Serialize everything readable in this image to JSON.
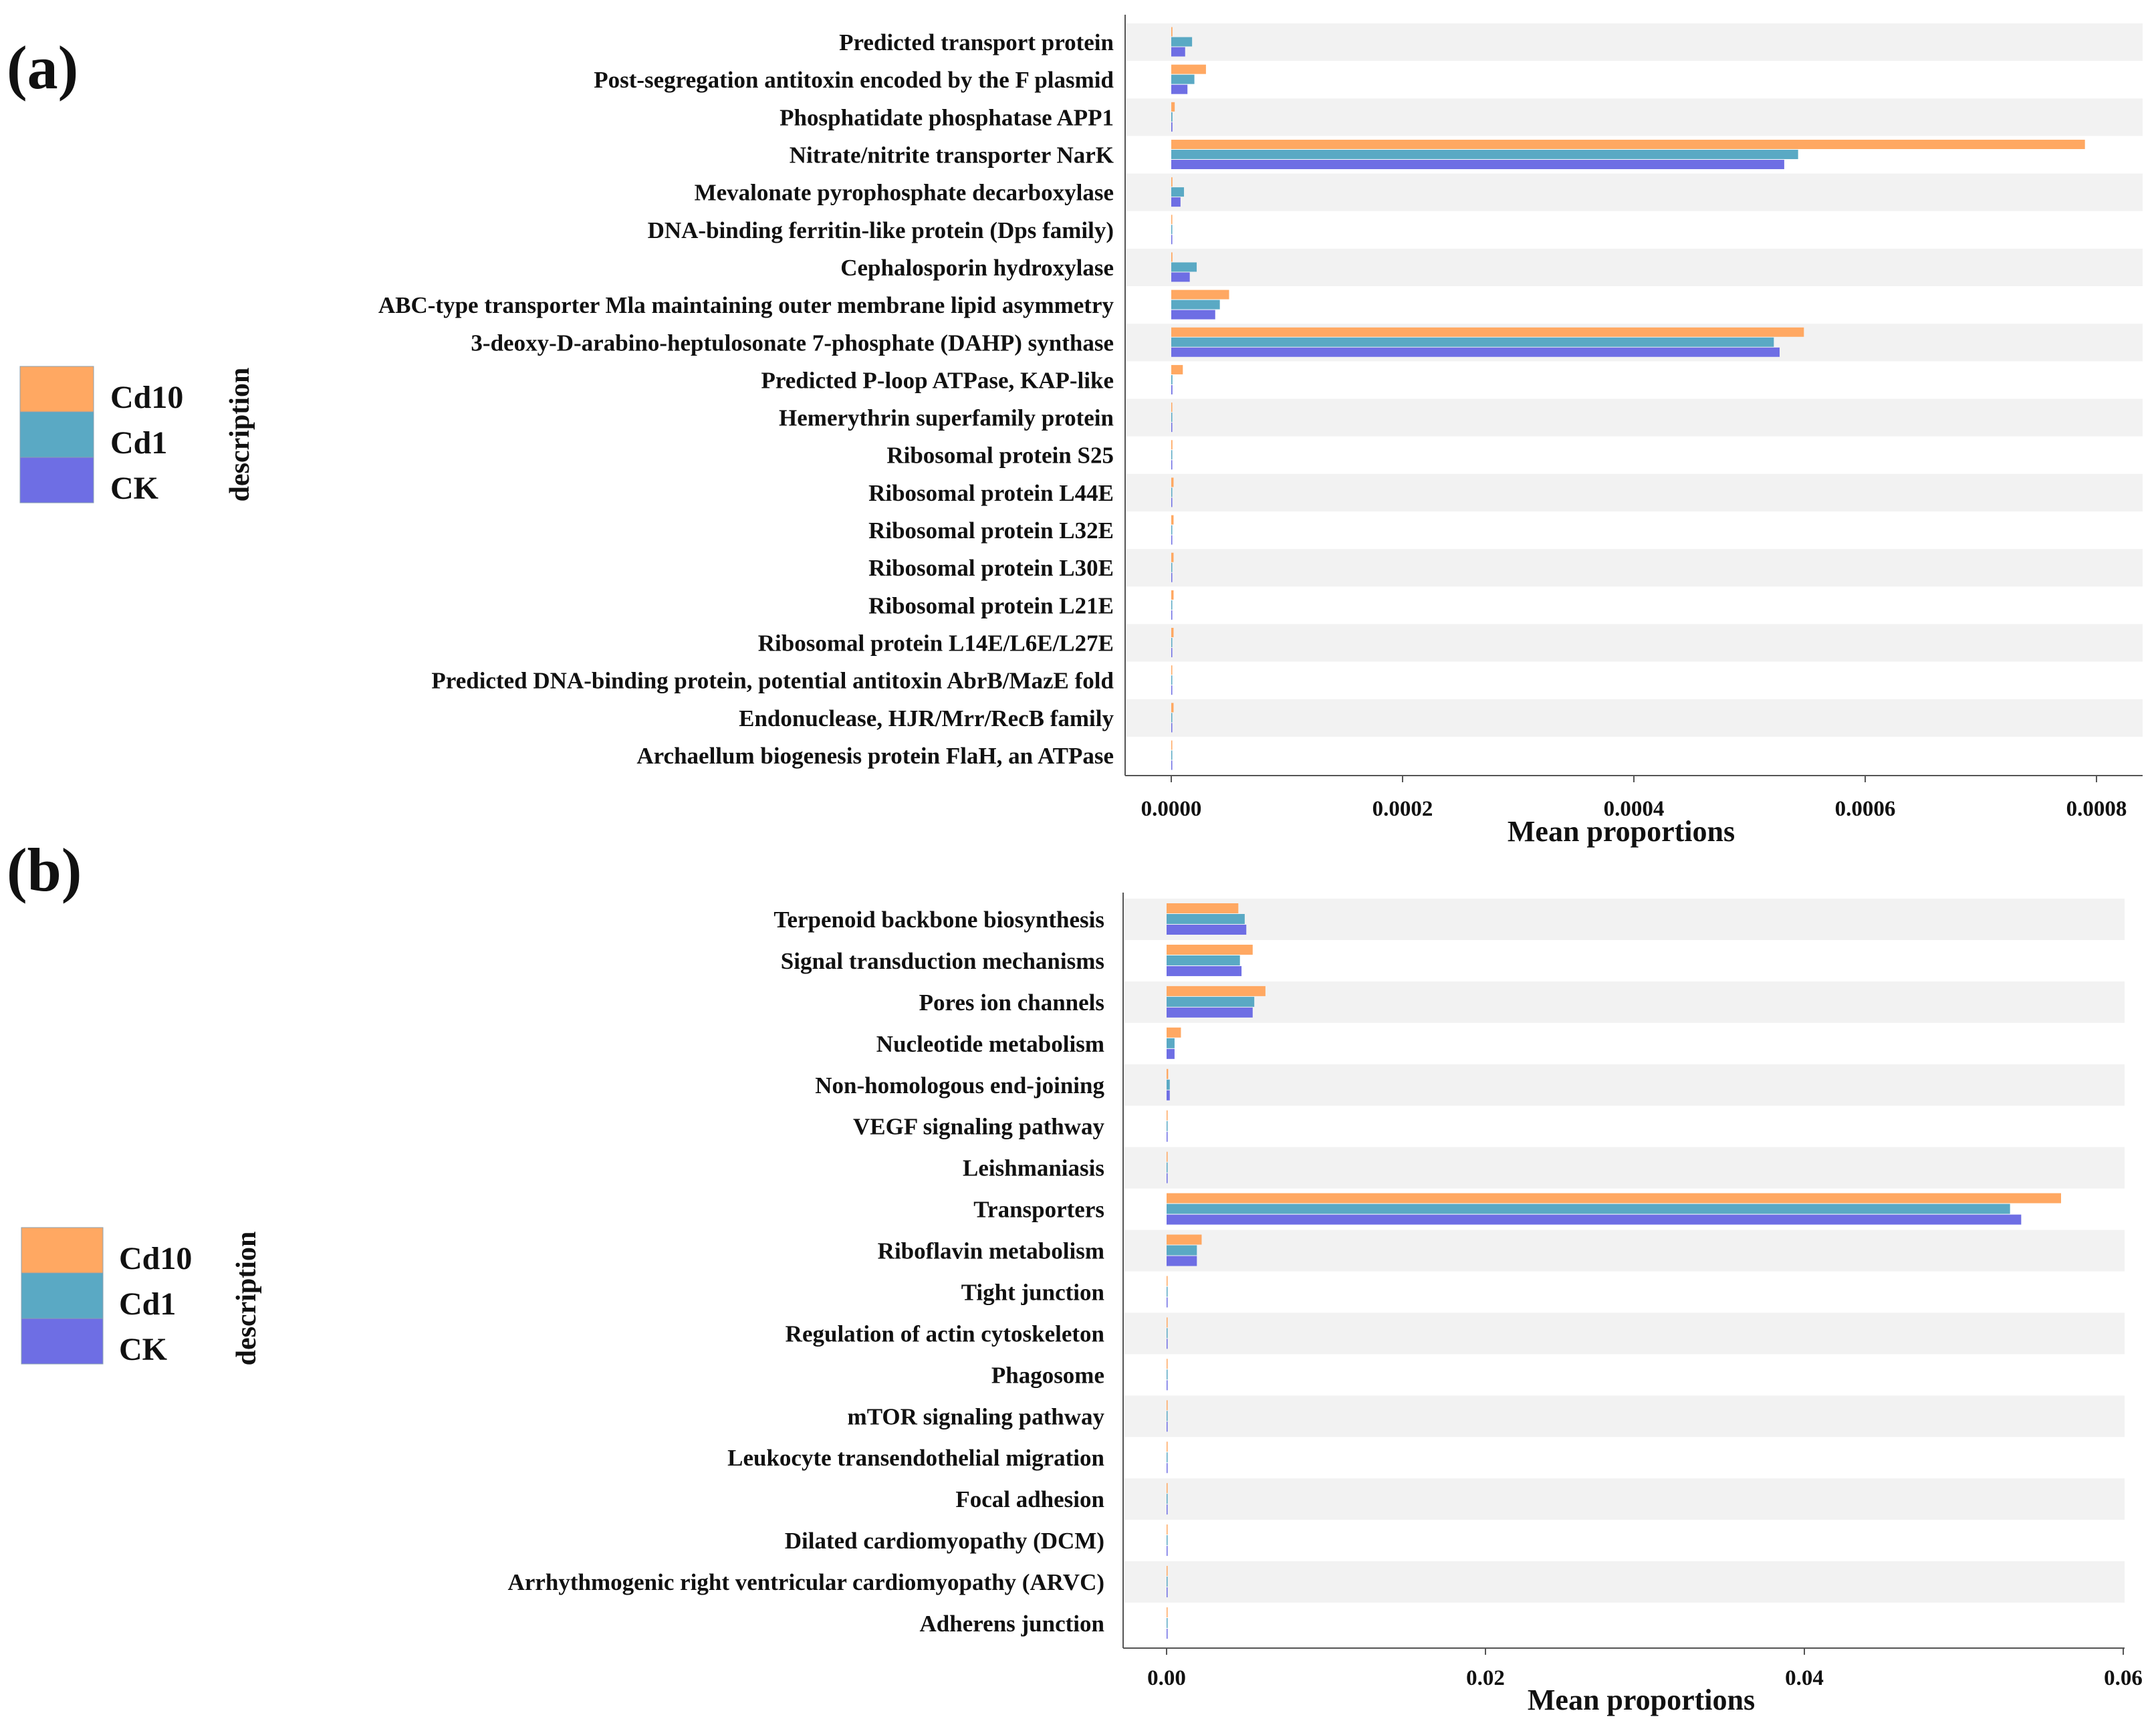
{
  "colors": {
    "Cd10": "#FFA862",
    "Cd1": "#5AA9C4",
    "CK": "#6E6EE4",
    "band": "#F2F2F2",
    "axis": "#555555"
  },
  "chart_data": [
    {
      "type": "bar",
      "orientation": "horizontal",
      "panel_label": "(a)",
      "xlabel": "Mean proportions",
      "ylabel": "description",
      "xlim": [
        0,
        0.00085
      ],
      "ticks": [
        0,
        0.0002,
        0.0004,
        0.0006,
        0.0008
      ],
      "tick_labels": [
        "0.0000",
        "0.0002",
        "0.0004",
        "0.0006",
        "0.0008"
      ],
      "legend": [
        "Cd10",
        "Cd1",
        "CK"
      ],
      "categories": [
        "Predicted transport protein",
        "Post-segregation antitoxin encoded by the F plasmid",
        "Phosphatidate phosphatase APP1",
        "Nitrate/nitrite transporter NarK",
        "Mevalonate pyrophosphate decarboxylase",
        "DNA-binding ferritin-like protein (Dps family)",
        "Cephalosporin hydroxylase",
        "ABC-type transporter Mla maintaining outer membrane lipid asymmetry",
        "3-deoxy-D-arabino-heptulosonate 7-phosphate (DAHP) synthase",
        "Predicted P-loop ATPase, KAP-like",
        "Hemerythrin superfamily protein",
        "Ribosomal protein S25",
        "Ribosomal protein L44E",
        "Ribosomal protein L32E",
        "Ribosomal protein L30E",
        "Ribosomal protein L21E",
        "Ribosomal protein L14E/L6E/L27E",
        "Predicted DNA-binding protein, potential antitoxin AbrB/MazE fold",
        "Endonuclease, HJR/Mrr/RecB family",
        "Archaellum biogenesis protein FlaH, an ATPase"
      ],
      "series": [
        {
          "name": "Cd10",
          "values": [
            1e-06,
            3e-05,
            3e-06,
            0.00079,
            1e-06,
            5e-07,
            1e-06,
            5e-05,
            0.000547,
            1e-05,
            5e-07,
            1e-06,
            2e-06,
            2e-06,
            2e-06,
            2e-06,
            2e-06,
            5e-07,
            2e-06,
            5e-07
          ]
        },
        {
          "name": "Cd1",
          "values": [
            1.8e-05,
            2e-05,
            1e-06,
            0.000542,
            1.1e-05,
            5e-07,
            2.2e-05,
            4.2e-05,
            0.000521,
            1e-06,
            5e-07,
            5e-07,
            5e-07,
            5e-07,
            5e-07,
            5e-07,
            5e-07,
            5e-07,
            5e-07,
            5e-07
          ]
        },
        {
          "name": "CK",
          "values": [
            1.2e-05,
            1.4e-05,
            1e-06,
            0.00053,
            8e-06,
            5e-07,
            1.6e-05,
            3.8e-05,
            0.000526,
            1e-06,
            5e-07,
            5e-07,
            5e-07,
            5e-07,
            5e-07,
            5e-07,
            5e-07,
            5e-07,
            5e-07,
            5e-07
          ]
        }
      ]
    },
    {
      "type": "bar",
      "orientation": "horizontal",
      "panel_label": "(b)",
      "xlabel": "Mean proportions",
      "ylabel": "description",
      "xlim": [
        0,
        0.06
      ],
      "ticks": [
        0,
        0.02,
        0.04,
        0.06
      ],
      "tick_labels": [
        "0.00",
        "0.02",
        "0.04",
        "0.06"
      ],
      "legend": [
        "Cd10",
        "Cd1",
        "CK"
      ],
      "categories": [
        "Terpenoid backbone biosynthesis",
        "Signal transduction mechanisms",
        "Pores ion channels",
        "Nucleotide metabolism",
        "Non-homologous end-joining",
        "VEGF signaling pathway",
        "Leishmaniasis",
        "Transporters",
        "Riboflavin metabolism",
        "Tight junction",
        "Regulation of actin cytoskeleton",
        "Phagosome",
        "mTOR signaling pathway",
        "Leukocyte transendothelial migration",
        "Focal adhesion",
        "Dilated cardiomyopathy (DCM)",
        "Arrhythmogenic right ventricular cardiomyopathy (ARVC)",
        "Adherens junction"
      ],
      "series": [
        {
          "name": "Cd10",
          "values": [
            0.0045,
            0.0054,
            0.0062,
            0.0009,
            0.0001,
            3e-05,
            3e-05,
            0.0561,
            0.0022,
            3e-05,
            3e-05,
            3e-05,
            3e-05,
            3e-05,
            3e-05,
            3e-05,
            3e-05,
            3e-05
          ]
        },
        {
          "name": "Cd1",
          "values": [
            0.0049,
            0.0046,
            0.0055,
            0.0005,
            0.0002,
            3e-05,
            3e-05,
            0.0529,
            0.0019,
            3e-05,
            3e-05,
            3e-05,
            3e-05,
            3e-05,
            3e-05,
            3e-05,
            3e-05,
            3e-05
          ]
        },
        {
          "name": "CK",
          "values": [
            0.005,
            0.0047,
            0.0054,
            0.0005,
            0.0002,
            3e-05,
            3e-05,
            0.0536,
            0.0019,
            3e-05,
            3e-05,
            3e-05,
            3e-05,
            3e-05,
            3e-05,
            3e-05,
            3e-05,
            3e-05
          ]
        }
      ]
    }
  ]
}
